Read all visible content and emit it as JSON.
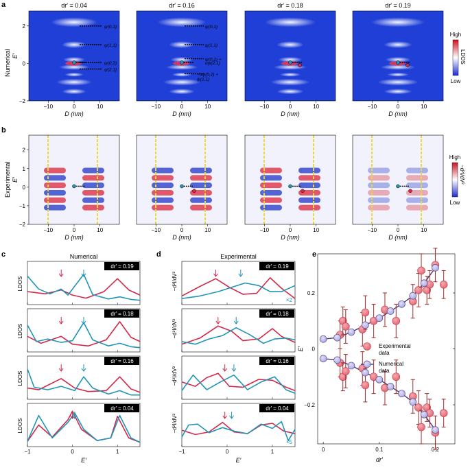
{
  "panels": {
    "a": "a",
    "b": "b",
    "c": "c",
    "d": "d",
    "e": "e"
  },
  "row_labels": {
    "numerical": "Numerical",
    "experimental": "Experimental"
  },
  "map_titles": [
    "dr′ = 0.04",
    "dr′ = 0.16",
    "dr′ = 0.18",
    "dr′ = 0.19"
  ],
  "map_axes": {
    "xlabel": "D (nm)",
    "ylabel": "E′",
    "xticks": [
      "−10",
      "0",
      "10"
    ],
    "yticks_a": [
      "2",
      "0",
      "−2"
    ],
    "yticks_b": [
      "2",
      "1",
      "0",
      "−1",
      "−2"
    ]
  },
  "colorbar_a": {
    "high": "High",
    "low": "Low",
    "label": "LDOS"
  },
  "colorbar_b": {
    "high": "High",
    "low": "Low",
    "label": "−d²I/dV²"
  },
  "state_labels": {
    "p1": [
      "ψ(0,1)",
      "ψ(1,1)",
      "ψ(0,2)",
      "ψ(2,1)"
    ],
    "p2": [
      "ψ(0,1)",
      "ψ(1,1)",
      "ψ(0,2) +",
      "αψ(2,1)",
      "−αψ(0,2) +",
      "ψ(2,1)"
    ]
  },
  "colors": {
    "red": "#d4284a",
    "blue": "#1f95b7",
    "exp_fill": "#f0878c",
    "num_fill": "#c8c4ea",
    "num_line": "#4a4080",
    "err": "#9e2a2a",
    "guide": "#e8d83a"
  },
  "chart_data": [
    {
      "panel": "c",
      "type": "line",
      "title": "Numerical",
      "xlabel": "E′",
      "ylabel": "LDOS",
      "xlim": [
        -1,
        1.5
      ],
      "xticks": [
        "−1",
        "0",
        "1"
      ],
      "series": [
        {
          "name": "dr′ = 0.19",
          "blue": [
            [
              -1,
              0.66
            ],
            [
              -0.75,
              0.36
            ],
            [
              -0.5,
              0.25
            ],
            [
              -0.25,
              0.36
            ],
            [
              -0.1,
              0.22
            ],
            [
              0.25,
              0.7
            ],
            [
              0.45,
              0.23
            ],
            [
              0.8,
              0.13
            ],
            [
              1.05,
              0.18
            ],
            [
              1.3,
              0.12
            ],
            [
              1.5,
              0.1
            ]
          ],
          "red": [
            [
              -1,
              0.3
            ],
            [
              -0.6,
              0.25
            ],
            [
              -0.25,
              0.34
            ],
            [
              0,
              0.22
            ],
            [
              0.3,
              0.15
            ],
            [
              0.7,
              0.3
            ],
            [
              1.0,
              0.6
            ],
            [
              1.25,
              0.34
            ],
            [
              1.5,
              0.22
            ]
          ],
          "red_arrow": -0.25,
          "blue_arrow": 0.25
        },
        {
          "name": "dr′ = 0.18",
          "blue": [
            [
              -1,
              0.62
            ],
            [
              -0.8,
              0.24
            ],
            [
              -0.55,
              0.3
            ],
            [
              -0.25,
              0.22
            ],
            [
              0.0,
              0.26
            ],
            [
              0.25,
              0.68
            ],
            [
              0.45,
              0.28
            ],
            [
              0.8,
              0.14
            ],
            [
              1.05,
              0.2
            ],
            [
              1.3,
              0.12
            ],
            [
              1.5,
              0.1
            ]
          ],
          "red": [
            [
              -1,
              0.36
            ],
            [
              -0.7,
              0.2
            ],
            [
              -0.25,
              0.36
            ],
            [
              0.0,
              0.18
            ],
            [
              0.35,
              0.14
            ],
            [
              0.75,
              0.28
            ],
            [
              1.05,
              0.7
            ],
            [
              1.3,
              0.34
            ],
            [
              1.5,
              0.24
            ]
          ],
          "red_arrow": -0.25,
          "blue_arrow": 0.25
        },
        {
          "name": "dr′ = 0.16",
          "blue": [
            [
              -1,
              0.7
            ],
            [
              -0.85,
              0.28
            ],
            [
              -0.55,
              0.22
            ],
            [
              -0.25,
              0.3
            ],
            [
              0.05,
              0.2
            ],
            [
              0.25,
              0.52
            ],
            [
              0.45,
              0.26
            ],
            [
              0.8,
              0.12
            ],
            [
              1.05,
              0.2
            ],
            [
              1.3,
              0.1
            ],
            [
              1.5,
              0.1
            ]
          ],
          "red": [
            [
              -1,
              0.26
            ],
            [
              -0.75,
              0.22
            ],
            [
              -0.25,
              0.48
            ],
            [
              0.05,
              0.26
            ],
            [
              0.35,
              0.18
            ],
            [
              0.75,
              0.2
            ],
            [
              1.05,
              0.52
            ],
            [
              1.3,
              0.24
            ],
            [
              1.5,
              0.16
            ]
          ],
          "red_arrow": -0.25,
          "blue_arrow": 0.25
        },
        {
          "name": "dr′ = 0.04",
          "blue": [
            [
              -1,
              0.12
            ],
            [
              -0.75,
              0.72
            ],
            [
              -0.45,
              0.2
            ],
            [
              -0.1,
              0.56
            ],
            [
              0.05,
              0.78
            ],
            [
              0.25,
              0.4
            ],
            [
              0.55,
              0.14
            ],
            [
              0.85,
              0.2
            ],
            [
              1.05,
              0.72
            ],
            [
              1.3,
              0.2
            ],
            [
              1.5,
              0.1
            ]
          ],
          "red": [
            [
              -1,
              0.12
            ],
            [
              -0.75,
              0.5
            ],
            [
              -0.45,
              0.22
            ],
            [
              -0.1,
              0.62
            ],
            [
              0.0,
              0.82
            ],
            [
              0.2,
              0.4
            ],
            [
              0.55,
              0.14
            ],
            [
              0.85,
              0.2
            ],
            [
              1.0,
              0.7
            ],
            [
              1.25,
              0.2
            ],
            [
              1.5,
              0.1
            ]
          ],
          "red_arrow": 0.0,
          "blue_arrow": 0.05
        }
      ]
    },
    {
      "panel": "d",
      "type": "line",
      "title": "Experimental",
      "xlabel": "E′",
      "ylabel": "−d²I/dV²",
      "xlim": [
        -1,
        1.5
      ],
      "xticks": [
        "−1",
        "0",
        "1"
      ],
      "series": [
        {
          "name": "dr′ = 0.19",
          "note": "×2",
          "blue": [
            [
              -1,
              0.14
            ],
            [
              -0.6,
              0.2
            ],
            [
              -0.2,
              0.3
            ],
            [
              0.1,
              0.4
            ],
            [
              0.4,
              0.5
            ],
            [
              0.7,
              0.44
            ],
            [
              0.95,
              0.3
            ],
            [
              1.2,
              0.3
            ],
            [
              1.5,
              0.44
            ]
          ],
          "red": [
            [
              -1,
              0.2
            ],
            [
              -0.6,
              0.42
            ],
            [
              -0.25,
              0.6
            ],
            [
              0.05,
              0.4
            ],
            [
              0.35,
              0.24
            ],
            [
              0.65,
              0.26
            ],
            [
              0.95,
              0.62
            ],
            [
              1.2,
              0.38
            ],
            [
              1.5,
              0.14
            ]
          ],
          "red_arrow": -0.25,
          "blue_arrow": 0.3
        },
        {
          "name": "dr′ = 0.18",
          "blue": [
            [
              -1,
              0.24
            ],
            [
              -0.7,
              0.18
            ],
            [
              -0.4,
              0.3
            ],
            [
              -0.1,
              0.38
            ],
            [
              0.2,
              0.56
            ],
            [
              0.5,
              0.4
            ],
            [
              0.8,
              0.2
            ],
            [
              1.05,
              0.3
            ],
            [
              1.3,
              0.32
            ],
            [
              1.5,
              0.28
            ]
          ],
          "red": [
            [
              -1,
              0.18
            ],
            [
              -0.6,
              0.32
            ],
            [
              -0.2,
              0.6
            ],
            [
              0.1,
              0.48
            ],
            [
              0.35,
              0.26
            ],
            [
              0.7,
              0.3
            ],
            [
              1.0,
              0.54
            ],
            [
              1.2,
              0.36
            ],
            [
              1.5,
              0.22
            ]
          ],
          "red_arrow": -0.2,
          "blue_arrow": 0.2
        },
        {
          "name": "dr′ = 0.16",
          "blue": [
            [
              -1,
              0.2
            ],
            [
              -0.75,
              0.56
            ],
            [
              -0.45,
              0.22
            ],
            [
              -0.15,
              0.4
            ],
            [
              0.15,
              0.56
            ],
            [
              0.45,
              0.22
            ],
            [
              0.75,
              0.4
            ],
            [
              1.05,
              0.52
            ],
            [
              1.3,
              0.22
            ],
            [
              1.5,
              0.14
            ]
          ],
          "red": [
            [
              -1,
              0.4
            ],
            [
              -0.7,
              0.3
            ],
            [
              -0.45,
              0.5
            ],
            [
              -0.2,
              0.6
            ],
            [
              0.05,
              0.3
            ],
            [
              0.35,
              0.28
            ],
            [
              0.7,
              0.46
            ],
            [
              1.0,
              0.44
            ],
            [
              1.3,
              0.28
            ],
            [
              1.5,
              0.2
            ]
          ],
          "red_arrow": -0.05,
          "blue_arrow": 0.15
        },
        {
          "name": "dr′ = 0.04",
          "note": "×5",
          "blue": [
            [
              -1,
              0.22
            ],
            [
              -0.85,
              0.5
            ],
            [
              -0.65,
              0.52
            ],
            [
              -0.4,
              0.32
            ],
            [
              -0.1,
              0.44
            ],
            [
              0.15,
              0.36
            ],
            [
              0.45,
              0.3
            ],
            [
              0.75,
              0.52
            ],
            [
              1.0,
              0.42
            ],
            [
              1.2,
              0.58
            ],
            [
              1.35,
              0.14
            ],
            [
              1.5,
              0.4
            ]
          ],
          "red": [
            [
              -1,
              0.38
            ],
            [
              -0.7,
              0.28
            ],
            [
              -0.4,
              0.34
            ],
            [
              -0.1,
              0.56
            ],
            [
              0.15,
              0.34
            ],
            [
              0.45,
              0.3
            ],
            [
              0.75,
              0.5
            ],
            [
              1.0,
              0.54
            ],
            [
              1.25,
              0.36
            ],
            [
              1.5,
              0.3
            ]
          ],
          "red_arrow": -0.05,
          "blue_arrow": 0.1
        }
      ]
    },
    {
      "panel": "e",
      "type": "scatter",
      "xlabel": "dr′",
      "ylabel": "E′",
      "xlim": [
        -0.01,
        0.235
      ],
      "ylim": [
        -0.34,
        0.34
      ],
      "xticks": [
        "0",
        "0.1",
        "0.2"
      ],
      "yticks": [
        "0.2",
        "0",
        "−0.2"
      ],
      "legend": {
        "experimental": "Experimental",
        "numerical": "Numerical",
        "data": "data"
      },
      "experimental_upper": [
        [
          0.03,
          0.05,
          0.05
        ],
        [
          0.035,
          0.1,
          0.05
        ],
        [
          0.04,
          0.08,
          0.06
        ],
        [
          0.07,
          0.07,
          0.06
        ],
        [
          0.075,
          0.13,
          0.06
        ],
        [
          0.09,
          0.1,
          0.06
        ],
        [
          0.11,
          0.14,
          0.06
        ],
        [
          0.13,
          0.1,
          0.06
        ],
        [
          0.16,
          0.17,
          0.06
        ],
        [
          0.17,
          0.21,
          0.06
        ],
        [
          0.175,
          0.28,
          0.06
        ],
        [
          0.185,
          0.21,
          0.05
        ],
        [
          0.19,
          0.23,
          0.05
        ],
        [
          0.2,
          0.3,
          0.06
        ],
        [
          0.215,
          0.23,
          0.05
        ]
      ],
      "experimental_lower": [
        [
          0.03,
          -0.05,
          0.05
        ],
        [
          0.035,
          -0.1,
          0.05
        ],
        [
          0.04,
          -0.08,
          0.06
        ],
        [
          0.07,
          -0.07,
          0.06
        ],
        [
          0.075,
          -0.13,
          0.06
        ],
        [
          0.09,
          -0.1,
          0.06
        ],
        [
          0.11,
          -0.14,
          0.06
        ],
        [
          0.13,
          -0.1,
          0.06
        ],
        [
          0.16,
          -0.17,
          0.06
        ],
        [
          0.17,
          -0.21,
          0.06
        ],
        [
          0.175,
          -0.28,
          0.06
        ],
        [
          0.185,
          -0.21,
          0.05
        ],
        [
          0.19,
          -0.23,
          0.05
        ],
        [
          0.2,
          -0.3,
          0.06
        ],
        [
          0.215,
          -0.23,
          0.05
        ]
      ],
      "numerical_upper": [
        [
          0,
          0.035
        ],
        [
          0.025,
          0.04
        ],
        [
          0.05,
          0.06
        ],
        [
          0.075,
          0.085
        ],
        [
          0.1,
          0.11
        ],
        [
          0.12,
          0.135
        ],
        [
          0.14,
          0.16
        ],
        [
          0.16,
          0.19
        ],
        [
          0.18,
          0.235
        ],
        [
          0.2,
          0.29
        ]
      ],
      "numerical_lower": [
        [
          0,
          -0.035
        ],
        [
          0.025,
          -0.04
        ],
        [
          0.05,
          -0.06
        ],
        [
          0.075,
          -0.085
        ],
        [
          0.1,
          -0.11
        ],
        [
          0.12,
          -0.135
        ],
        [
          0.14,
          -0.16
        ],
        [
          0.16,
          -0.19
        ],
        [
          0.18,
          -0.235
        ],
        [
          0.2,
          -0.29
        ]
      ]
    }
  ]
}
